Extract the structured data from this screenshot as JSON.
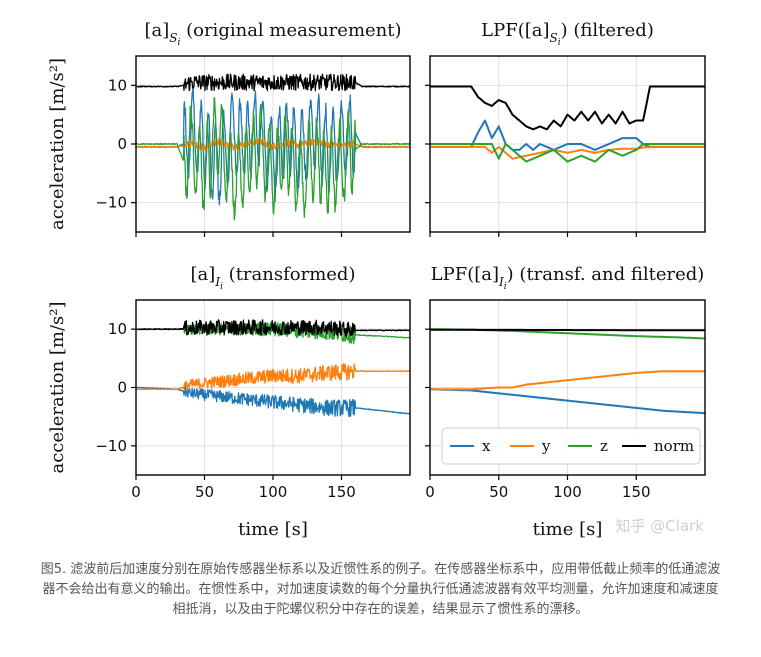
{
  "chart_data": [
    {
      "type": "line",
      "panel": "top-left",
      "title_main": "[a]",
      "title_sub": "S",
      "title_subsub": "i",
      "title_rest": " (original measurement)",
      "ylabel": "acceleration [m/s²]",
      "xlim": [
        0,
        200
      ],
      "ylim": [
        -15,
        15
      ],
      "yticks": [
        -10,
        0,
        10
      ],
      "xticks": [
        0,
        50,
        100,
        150
      ],
      "grid": true,
      "description": "raw noisy measurement; motion between t=35 and t=160",
      "series": [
        {
          "name": "x",
          "x": [
            0,
            30,
            35,
            40,
            50,
            60,
            70,
            80,
            90,
            100,
            110,
            120,
            130,
            140,
            150,
            160,
            165,
            200
          ],
          "values": [
            -0.5,
            -0.5,
            0,
            2,
            0,
            -4,
            2,
            0,
            3,
            -3,
            1,
            -2,
            3,
            -1,
            0,
            2,
            -0.5,
            -0.5
          ]
        },
        {
          "name": "y",
          "x": [
            0,
            30,
            35,
            40,
            50,
            60,
            70,
            80,
            90,
            100,
            110,
            120,
            130,
            140,
            150,
            160,
            165,
            200
          ],
          "values": [
            -0.5,
            -0.5,
            -0.3,
            0,
            -0.5,
            0.5,
            -0.5,
            0,
            0.5,
            -0.5,
            0.3,
            -0.3,
            0.5,
            0,
            -0.3,
            0,
            -0.5,
            -0.5
          ]
        },
        {
          "name": "z",
          "x": [
            0,
            30,
            35,
            40,
            50,
            60,
            70,
            80,
            90,
            100,
            110,
            120,
            130,
            140,
            150,
            160,
            165,
            200
          ],
          "values": [
            0,
            0,
            -3,
            0,
            -5,
            2,
            -6,
            -4,
            0,
            -5,
            -1,
            -6,
            -2,
            -5,
            -3,
            -1,
            0,
            0
          ]
        },
        {
          "name": "norm",
          "x": [
            0,
            30,
            35,
            40,
            60,
            80,
            100,
            120,
            140,
            160,
            165,
            200
          ],
          "values": [
            9.8,
            9.8,
            10,
            10.5,
            10.5,
            10.5,
            10.5,
            10.5,
            10.5,
            10.5,
            9.8,
            9.8
          ]
        }
      ]
    },
    {
      "type": "line",
      "panel": "top-right",
      "title_main": "LPF([a]",
      "title_sub": "S",
      "title_subsub": "i",
      "title_rest": ") (filtered)",
      "xlim": [
        0,
        200
      ],
      "ylim": [
        -15,
        15
      ],
      "yticks": [
        -10,
        0,
        10
      ],
      "xticks": [
        0,
        50,
        100,
        150
      ],
      "grid": true,
      "series": [
        {
          "name": "x",
          "x": [
            0,
            30,
            35,
            40,
            45,
            50,
            55,
            60,
            65,
            70,
            75,
            80,
            90,
            100,
            110,
            120,
            130,
            140,
            150,
            155,
            160,
            165,
            200
          ],
          "values": [
            -0.5,
            -0.5,
            2,
            4,
            1,
            3,
            0,
            -1,
            -1,
            0,
            -1,
            0,
            -1,
            0,
            0,
            -1,
            0,
            1,
            1,
            0,
            -0.5,
            -0.5,
            -0.5
          ]
        },
        {
          "name": "y",
          "x": [
            0,
            30,
            40,
            45,
            50,
            55,
            60,
            70,
            80,
            90,
            100,
            110,
            120,
            130,
            140,
            150,
            155,
            160,
            200
          ],
          "values": [
            -0.5,
            -0.5,
            -0.5,
            -1.5,
            -0.5,
            -1.5,
            -2.5,
            -2,
            -1.5,
            -1,
            -1.5,
            -1,
            -1.5,
            -1,
            -0.8,
            -0.8,
            -0.6,
            -0.5,
            -0.5
          ]
        },
        {
          "name": "z",
          "x": [
            0,
            30,
            40,
            45,
            50,
            55,
            60,
            70,
            80,
            90,
            100,
            110,
            120,
            130,
            140,
            150,
            155,
            160,
            200
          ],
          "values": [
            0,
            0,
            0,
            0,
            -2.5,
            0,
            -1,
            -3,
            -2,
            -1,
            -3,
            -2,
            -3,
            -1,
            -2,
            -1,
            0,
            0,
            0
          ]
        },
        {
          "name": "norm",
          "x": [
            0,
            30,
            35,
            40,
            45,
            50,
            55,
            60,
            65,
            70,
            75,
            80,
            85,
            90,
            95,
            100,
            105,
            110,
            115,
            120,
            125,
            130,
            135,
            140,
            145,
            150,
            155,
            160,
            200
          ],
          "values": [
            9.8,
            9.8,
            8,
            7,
            6.5,
            7.5,
            7,
            5,
            4,
            3,
            2.5,
            3,
            2.5,
            4,
            3,
            5,
            4,
            5.5,
            4,
            5.5,
            3.5,
            5,
            3.5,
            5.5,
            3.5,
            4,
            4,
            9.8,
            9.8
          ]
        }
      ]
    },
    {
      "type": "line",
      "panel": "bottom-left",
      "title_main": "[a]",
      "title_sub": "I",
      "title_subsub": "i",
      "title_rest": " (transformed)",
      "ylabel": "acceleration [m/s²]",
      "xlabel": "time [s]",
      "xlim": [
        0,
        200
      ],
      "ylim": [
        -15,
        15
      ],
      "yticks": [
        -10,
        0,
        10
      ],
      "xticks": [
        0,
        50,
        100,
        150
      ],
      "grid": true,
      "series": [
        {
          "name": "x",
          "x": [
            0,
            30,
            40,
            60,
            80,
            100,
            120,
            140,
            160,
            180,
            200
          ],
          "values": [
            0,
            -0.3,
            -1,
            -1.5,
            -2,
            -2.5,
            -3,
            -3.5,
            -3.5,
            -4,
            -4.5
          ]
        },
        {
          "name": "y",
          "x": [
            0,
            30,
            40,
            60,
            80,
            100,
            120,
            140,
            160,
            180,
            200
          ],
          "values": [
            -0.3,
            -0.3,
            0.5,
            1,
            1.5,
            2,
            2,
            2.5,
            2.8,
            2.8,
            2.8
          ]
        },
        {
          "name": "z",
          "x": [
            0,
            30,
            40,
            60,
            80,
            100,
            120,
            140,
            160,
            180,
            200
          ],
          "values": [
            10,
            10,
            10,
            10,
            10,
            10,
            9.8,
            9.5,
            9,
            8.8,
            8.5
          ]
        },
        {
          "name": "norm",
          "x": [
            0,
            30,
            40,
            60,
            80,
            100,
            120,
            140,
            160,
            200
          ],
          "values": [
            10,
            10,
            10.2,
            10.3,
            10.3,
            10.3,
            10.3,
            10.3,
            9.8,
            9.8
          ]
        }
      ]
    },
    {
      "type": "line",
      "panel": "bottom-right",
      "title_main": "LPF([a]",
      "title_sub": "I",
      "title_subsub": "i",
      "title_rest": ") (transf. and filtered)",
      "xlabel": "time [s]",
      "xlim": [
        0,
        200
      ],
      "ylim": [
        -15,
        15
      ],
      "yticks": [
        -10,
        0,
        10
      ],
      "xticks": [
        0,
        50,
        100,
        150
      ],
      "grid": true,
      "legend_position": "lower-right",
      "series": [
        {
          "name": "x",
          "x": [
            0,
            30,
            50,
            70,
            90,
            110,
            130,
            150,
            170,
            200
          ],
          "values": [
            -0.3,
            -0.5,
            -1,
            -1.5,
            -2,
            -2.5,
            -3,
            -3.5,
            -4,
            -4.4
          ]
        },
        {
          "name": "y",
          "x": [
            0,
            30,
            50,
            60,
            70,
            90,
            110,
            130,
            150,
            170,
            200
          ],
          "values": [
            -0.3,
            -0.3,
            0,
            0,
            0.5,
            1,
            1.5,
            2,
            2.5,
            2.8,
            2.8
          ]
        },
        {
          "name": "z",
          "x": [
            0,
            30,
            60,
            90,
            120,
            150,
            180,
            200
          ],
          "values": [
            10,
            9.9,
            9.7,
            9.4,
            9.1,
            8.8,
            8.6,
            8.4
          ]
        },
        {
          "name": "norm",
          "x": [
            0,
            200
          ],
          "values": [
            9.9,
            9.8
          ]
        }
      ]
    }
  ],
  "colors": {
    "x": "#1f77b4",
    "y": "#ff7f0e",
    "z": "#2ca02c",
    "norm": "#000000"
  },
  "legend": [
    "x",
    "y",
    "z",
    "norm"
  ],
  "watermark": "知乎 @Clark",
  "caption": "图5. 滤波前后加速度分别在原始传感器坐标系以及近惯性系的例子。在传感器坐标系中，应用带低截止频率的低通滤波器不会给出有意义的输出。在惯性系中，对加速度读数的每个分量执行低通滤波器有效平均测量，允许加速度和减速度相抵消，以及由于陀螺仪积分中存在的误差，结果显示了惯性系的漂移。"
}
